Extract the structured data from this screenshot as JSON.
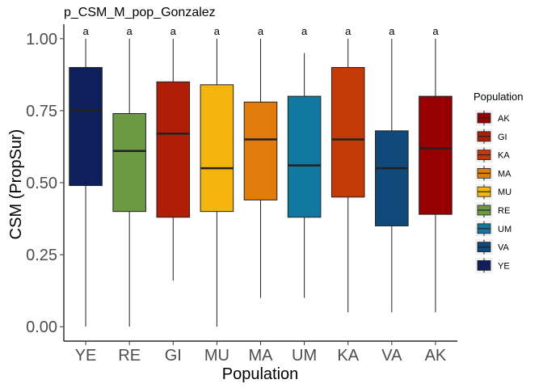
{
  "chart_data": {
    "type": "boxplot",
    "title": "p_CSM_M_pop_Gonzalez",
    "xlabel": "Population",
    "ylabel": "CSM (PropSur)",
    "ylim": [
      -0.05,
      1.05
    ],
    "yticks": [
      0.0,
      0.25,
      0.5,
      0.75,
      1.0
    ],
    "ytick_labels": [
      "0.00",
      "0.25",
      "0.50",
      "0.75",
      "1.00"
    ],
    "grid": false,
    "legend": {
      "title": "Population",
      "placement": "right"
    },
    "categories": [
      "YE",
      "RE",
      "GI",
      "MU",
      "MA",
      "UM",
      "KA",
      "VA",
      "AK"
    ],
    "boxes": [
      {
        "category": "YE",
        "min": 0.0,
        "q1": 0.49,
        "median": 0.75,
        "q3": 0.9,
        "max": 1.0,
        "color": "#0f1f5c",
        "label": "a"
      },
      {
        "category": "RE",
        "min": 0.0,
        "q1": 0.4,
        "median": 0.61,
        "q3": 0.74,
        "max": 1.0,
        "color": "#6c9a44",
        "label": "a"
      },
      {
        "category": "GI",
        "min": 0.16,
        "q1": 0.38,
        "median": 0.67,
        "q3": 0.85,
        "max": 1.0,
        "color": "#b01e08",
        "label": "a"
      },
      {
        "category": "MU",
        "min": 0.0,
        "q1": 0.4,
        "median": 0.55,
        "q3": 0.84,
        "max": 1.0,
        "color": "#f4b50f",
        "label": "a"
      },
      {
        "category": "MA",
        "min": 0.1,
        "q1": 0.44,
        "median": 0.65,
        "q3": 0.78,
        "max": 1.0,
        "color": "#e07b0c",
        "label": "a"
      },
      {
        "category": "UM",
        "min": 0.1,
        "q1": 0.38,
        "median": 0.56,
        "q3": 0.8,
        "max": 0.95,
        "color": "#0f77a0",
        "label": "a"
      },
      {
        "category": "KA",
        "min": 0.05,
        "q1": 0.45,
        "median": 0.65,
        "q3": 0.9,
        "max": 1.0,
        "color": "#c43a07",
        "label": "a"
      },
      {
        "category": "VA",
        "min": 0.05,
        "q1": 0.35,
        "median": 0.55,
        "q3": 0.68,
        "max": 1.0,
        "color": "#0f4a7a",
        "label": "a"
      },
      {
        "category": "AK",
        "min": 0.05,
        "q1": 0.39,
        "median": 0.62,
        "q3": 0.8,
        "max": 1.0,
        "color": "#960000",
        "label": "a"
      }
    ],
    "legend_items": [
      {
        "name": "AK",
        "color": "#960000"
      },
      {
        "name": "GI",
        "color": "#b01e08"
      },
      {
        "name": "KA",
        "color": "#c43a07"
      },
      {
        "name": "MA",
        "color": "#e07b0c"
      },
      {
        "name": "MU",
        "color": "#f4b50f"
      },
      {
        "name": "RE",
        "color": "#6c9a44"
      },
      {
        "name": "UM",
        "color": "#0f77a0"
      },
      {
        "name": "VA",
        "color": "#0f4a7a"
      },
      {
        "name": "YE",
        "color": "#0f1f5c"
      }
    ]
  }
}
